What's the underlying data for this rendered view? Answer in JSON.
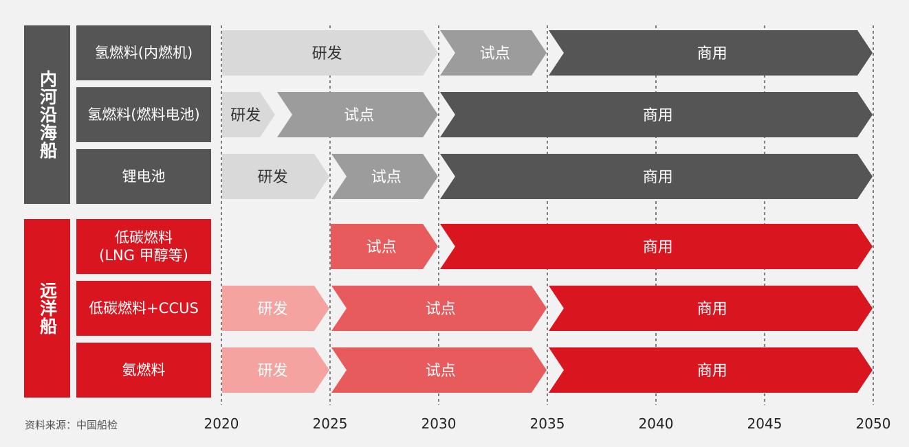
{
  "source": "资料来源：中国船检",
  "colors": {
    "gray_dark": "#555555",
    "gray_mid": "#9c9c9c",
    "gray_light": "#d9d9d9",
    "red_dark": "#d9161f",
    "red_mid": "#e85b5c",
    "red_light": "#f4a3a0"
  },
  "chart_data": {
    "type": "timeline",
    "x_ticks": [
      2020,
      2025,
      2030,
      2035,
      2040,
      2045,
      2050
    ],
    "xlim": [
      2020,
      2050
    ],
    "grid": "vertical dashed",
    "groups": [
      {
        "name": "内河沿海船",
        "color": "gray",
        "rows": [
          {
            "label": "氢燃料(内燃机)",
            "phases": [
              {
                "name": "研发",
                "start": 2020,
                "end": 2030,
                "shade": "light"
              },
              {
                "name": "试点",
                "start": 2030,
                "end": 2035,
                "shade": "mid"
              },
              {
                "name": "商用",
                "start": 2035,
                "end": 2050,
                "shade": "dark"
              }
            ]
          },
          {
            "label": "氢燃料(燃料电池)",
            "phases": [
              {
                "name": "研发",
                "start": 2020,
                "end": 2022.5,
                "shade": "light"
              },
              {
                "name": "试点",
                "start": 2022.5,
                "end": 2030,
                "shade": "mid"
              },
              {
                "name": "商用",
                "start": 2030,
                "end": 2050,
                "shade": "dark"
              }
            ]
          },
          {
            "label": "锂电池",
            "phases": [
              {
                "name": "研发",
                "start": 2020,
                "end": 2025,
                "shade": "light"
              },
              {
                "name": "试点",
                "start": 2025,
                "end": 2030,
                "shade": "mid"
              },
              {
                "name": "商用",
                "start": 2030,
                "end": 2050,
                "shade": "dark"
              }
            ]
          }
        ]
      },
      {
        "name": "远洋船",
        "color": "red",
        "rows": [
          {
            "label": "低碳燃料\n(LNG 甲醇等)",
            "phases": [
              {
                "name": "试点",
                "start": 2025,
                "end": 2030,
                "shade": "mid"
              },
              {
                "name": "商用",
                "start": 2030,
                "end": 2050,
                "shade": "dark"
              }
            ]
          },
          {
            "label": "低碳燃料+CCUS",
            "phases": [
              {
                "name": "研发",
                "start": 2020,
                "end": 2025,
                "shade": "light"
              },
              {
                "name": "试点",
                "start": 2025,
                "end": 2035,
                "shade": "mid"
              },
              {
                "name": "商用",
                "start": 2035,
                "end": 2050,
                "shade": "dark"
              }
            ]
          },
          {
            "label": "氨燃料",
            "phases": [
              {
                "name": "研发",
                "start": 2020,
                "end": 2025,
                "shade": "light"
              },
              {
                "name": "试点",
                "start": 2025,
                "end": 2035,
                "shade": "mid"
              },
              {
                "name": "商用",
                "start": 2035,
                "end": 2050,
                "shade": "dark"
              }
            ]
          }
        ]
      }
    ]
  }
}
